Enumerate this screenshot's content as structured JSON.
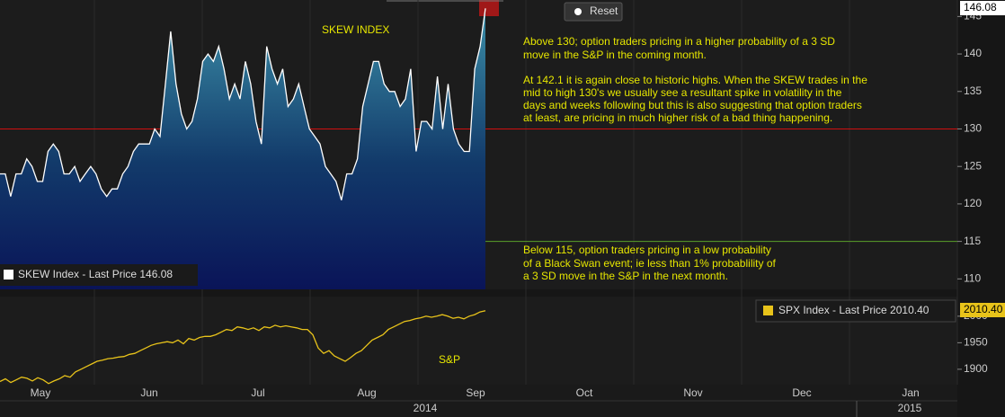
{
  "chart_data": [
    {
      "type": "line",
      "area": true,
      "color": "#ffffff",
      "title": "SKEW INDEX",
      "legend": "SKEW Index - Last Price 146.08",
      "last_price_tag": "146.08",
      "values": [
        124,
        124,
        121,
        124,
        124,
        126,
        125,
        123,
        123,
        127,
        128,
        127,
        124,
        124,
        125,
        123,
        124,
        125,
        124,
        122,
        121,
        122,
        122,
        124,
        125,
        127,
        128,
        128,
        128,
        130,
        129,
        136,
        143,
        136,
        132,
        130,
        131,
        134,
        139,
        140,
        139,
        141,
        138,
        134,
        136,
        134,
        139,
        136,
        131,
        128,
        141,
        138,
        136,
        138,
        133,
        134,
        136,
        133,
        130,
        129,
        128,
        125,
        124,
        123,
        120.5,
        124,
        124,
        126,
        133,
        136,
        139,
        139,
        136,
        135,
        135,
        133,
        134,
        138,
        127,
        131,
        131,
        130,
        137,
        130,
        136,
        130,
        128,
        127,
        127,
        138,
        141,
        146.08
      ],
      "ylim": [
        108.6,
        147.2
      ],
      "yticks": [
        110,
        115,
        120,
        125,
        130,
        135,
        140,
        145
      ],
      "reference_lines": [
        {
          "value": 130,
          "color": "#d01010"
        },
        {
          "value": 115,
          "color": "#5aa02a"
        }
      ],
      "annotations": [
        [
          "Above 130; option traders pricing in a higher probability of a 3 SD",
          "move in the S&P in the coming month."
        ],
        [
          "At 142.1 it is again close to historic highs. When the SKEW trades in the",
          "mid to high 130's we usually see a resultant spike in volatility in the",
          "days and weeks following but this is also suggesting that option traders",
          "at least, are pricing in much higher risk of a bad thing happening."
        ],
        [
          "Below 115, option traders pricing in a low probability",
          "of a Black Swan event; ie less than 1% probablility of",
          "a 3 SD move in the S&P in the next month."
        ]
      ],
      "button": "Reset"
    },
    {
      "type": "line",
      "area": false,
      "color": "#e8c31a",
      "title": "S&P",
      "legend": "SPX Index - Last Price 2010.40",
      "last_price_tag": "2010.40",
      "values": [
        1877,
        1882,
        1875,
        1880,
        1885,
        1883,
        1878,
        1884,
        1880,
        1873,
        1878,
        1882,
        1888,
        1885,
        1895,
        1900,
        1905,
        1910,
        1915,
        1917,
        1920,
        1921,
        1923,
        1924,
        1928,
        1930,
        1935,
        1940,
        1945,
        1948,
        1950,
        1952,
        1950,
        1955,
        1948,
        1958,
        1955,
        1960,
        1962,
        1962,
        1965,
        1970,
        1975,
        1973,
        1980,
        1978,
        1975,
        1978,
        1973,
        1980,
        1978,
        1983,
        1980,
        1982,
        1980,
        1978,
        1975,
        1975,
        1965,
        1940,
        1930,
        1935,
        1925,
        1920,
        1915,
        1922,
        1930,
        1935,
        1945,
        1955,
        1960,
        1965,
        1975,
        1980,
        1985,
        1990,
        1992,
        1995,
        1997,
        2000,
        1998,
        2000,
        2003,
        2000,
        1996,
        1998,
        1995,
        2000,
        2003,
        2008,
        2010.4
      ],
      "ylim": [
        1871,
        2037
      ],
      "yticks": [
        1900,
        1950,
        2000
      ],
      "months": [
        "May",
        "Jun",
        "Jul",
        "Aug",
        "Sep",
        "Oct",
        "Nov",
        "Dec",
        "Jan"
      ],
      "years": [
        "2014",
        "2015"
      ]
    }
  ]
}
